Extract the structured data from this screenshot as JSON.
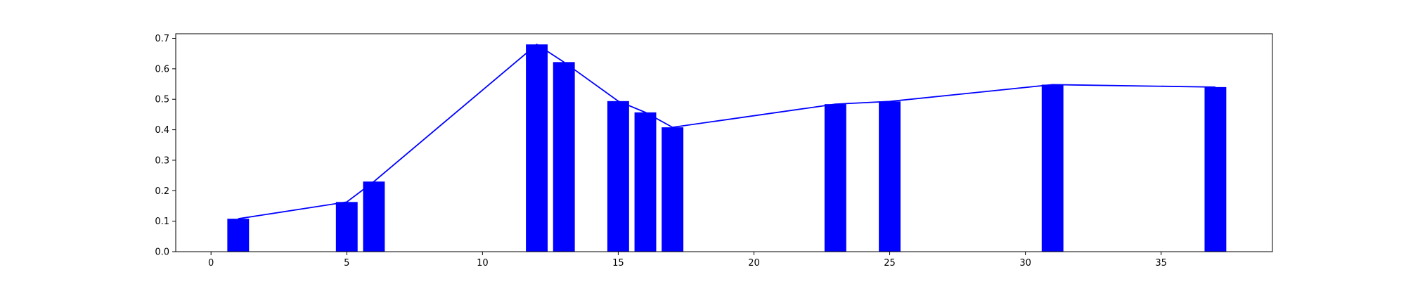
{
  "chart_data": {
    "type": "bar",
    "title": "",
    "xlabel": "",
    "ylabel": "",
    "xlim": [
      -1.3,
      39.1
    ],
    "ylim": [
      0.0,
      0.715
    ],
    "grid": false,
    "x_ticks": [
      0,
      5,
      10,
      15,
      20,
      25,
      30,
      35
    ],
    "x_tick_labels": [
      "0",
      "5",
      "10",
      "15",
      "20",
      "25",
      "30",
      "35"
    ],
    "y_ticks": [
      0.0,
      0.1,
      0.2,
      0.3,
      0.4,
      0.5,
      0.6,
      0.7
    ],
    "y_tick_labels": [
      "0.0",
      "0.1",
      "0.2",
      "0.3",
      "0.4",
      "0.5",
      "0.6",
      "0.7"
    ],
    "bar_width": 0.8,
    "series": [
      {
        "kind": "bar",
        "color": "#0000ff",
        "x": [
          1,
          5,
          6,
          12,
          13,
          15,
          16,
          17,
          23,
          25,
          31,
          37
        ],
        "values": [
          0.108,
          0.163,
          0.23,
          0.68,
          0.622,
          0.494,
          0.457,
          0.408,
          0.484,
          0.493,
          0.548,
          0.54
        ]
      },
      {
        "kind": "line",
        "color": "#0000ff",
        "x": [
          1,
          5,
          6,
          12,
          13,
          15,
          16,
          17,
          23,
          25,
          31,
          37
        ],
        "values": [
          0.108,
          0.163,
          0.23,
          0.68,
          0.622,
          0.494,
          0.457,
          0.408,
          0.484,
          0.493,
          0.548,
          0.54
        ]
      }
    ]
  }
}
